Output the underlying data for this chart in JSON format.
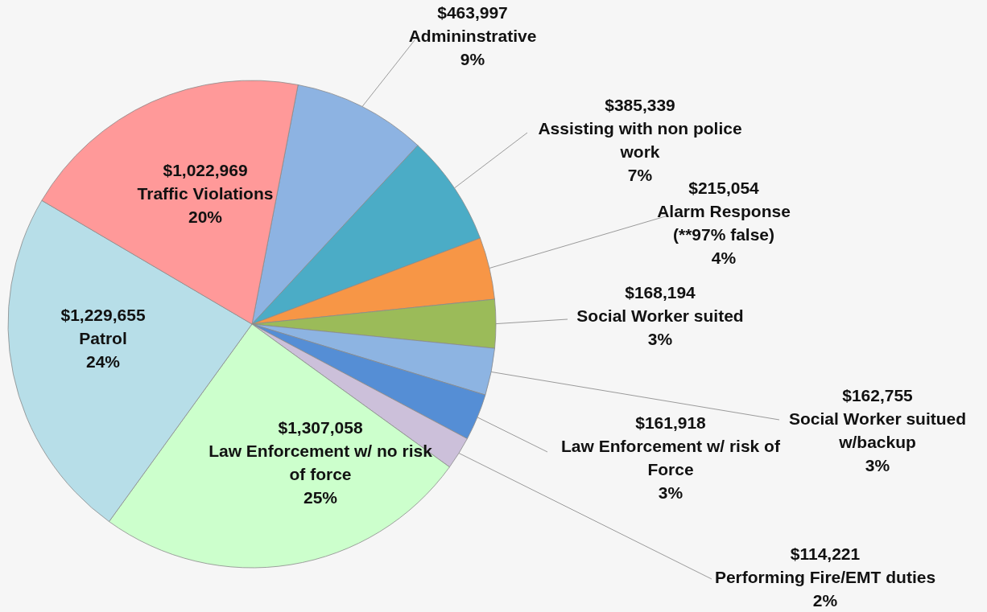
{
  "chart_data": {
    "type": "pie",
    "categories": [
      "Admininstrative",
      "Assisting with non police work",
      "Alarm Response (**97% false)",
      "Social Worker suited",
      "Social Worker suitued w/backup",
      "Law Enforcement w/ risk of Force",
      "Performing Fire/EMT duties",
      "Law Enforcement w/ no risk of force",
      "Patrol",
      "Traffic Violations"
    ],
    "values": [
      463997,
      385339,
      215054,
      168194,
      162755,
      161918,
      114221,
      1307058,
      1229655,
      1022969
    ],
    "value_labels": [
      "$463,997",
      "$385,339",
      "$215,054",
      "$168,194",
      "$162,755",
      "$161,918",
      "$114,221",
      "$1,307,058",
      "$1,229,655",
      "$1,022,969"
    ],
    "annotations": [
      "9%",
      "7%",
      "4%",
      "3%",
      "3%",
      "3%",
      "2%",
      "25%",
      "24%",
      "20%"
    ],
    "colors": [
      "#8db3e2",
      "#4bacc6",
      "#f79646",
      "#9bbb59",
      "#8db4e2",
      "#558ed5",
      "#ccc0da",
      "#ccffcc",
      "#b7dee8",
      "#ff9999"
    ]
  }
}
